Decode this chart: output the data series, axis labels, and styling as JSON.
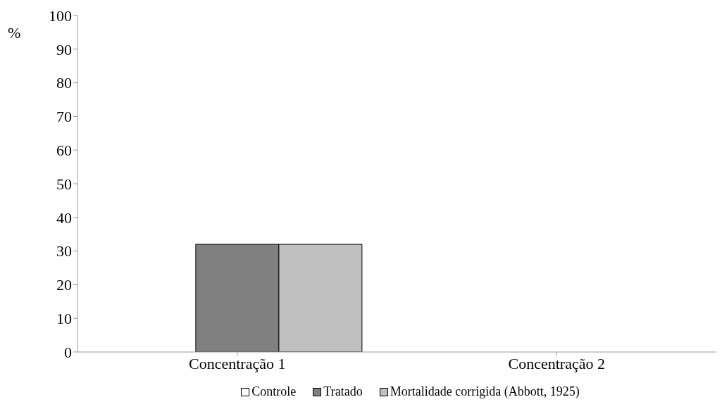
{
  "chart_data": {
    "type": "bar",
    "ylabel": "%",
    "categories": [
      "Concentração 1",
      "Concentração 2"
    ],
    "series": [
      {
        "name": "Controle",
        "color": "#ffffff",
        "values": [
          0,
          0
        ]
      },
      {
        "name": "Tratado",
        "color": "#808080",
        "values": [
          32,
          0
        ]
      },
      {
        "name": "Mortalidade corrigida (Abbott, 1925)",
        "color": "#c0c0c0",
        "values": [
          32,
          0
        ]
      }
    ],
    "ylim": [
      0,
      100
    ],
    "yticks": [
      0,
      10,
      20,
      30,
      40,
      50,
      60,
      70,
      80,
      90,
      100
    ],
    "grid": false,
    "legend": "bottom"
  }
}
